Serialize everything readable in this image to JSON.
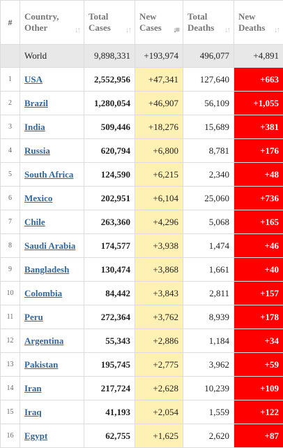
{
  "header": {
    "num": "#",
    "country": "Country, Other",
    "total_cases": "Total Cases",
    "new_cases": "New Cases",
    "total_deaths": "Total Deaths",
    "new_deaths": "New Deaths"
  },
  "world": {
    "country": "World",
    "total_cases": "9,898,331",
    "new_cases": "+193,974",
    "total_deaths": "496,077",
    "new_deaths": "+4,891"
  },
  "rows": [
    {
      "num": "1",
      "country": "USA",
      "total_cases": "2,552,956",
      "new_cases": "+47,341",
      "total_deaths": "127,640",
      "new_deaths": "+663"
    },
    {
      "num": "2",
      "country": "Brazil",
      "total_cases": "1,280,054",
      "new_cases": "+46,907",
      "total_deaths": "56,109",
      "new_deaths": "+1,055"
    },
    {
      "num": "3",
      "country": "India",
      "total_cases": "509,446",
      "new_cases": "+18,276",
      "total_deaths": "15,689",
      "new_deaths": "+381"
    },
    {
      "num": "4",
      "country": "Russia",
      "total_cases": "620,794",
      "new_cases": "+6,800",
      "total_deaths": "8,781",
      "new_deaths": "+176"
    },
    {
      "num": "5",
      "country": "South Africa",
      "total_cases": "124,590",
      "new_cases": "+6,215",
      "total_deaths": "2,340",
      "new_deaths": "+48"
    },
    {
      "num": "6",
      "country": "Mexico",
      "total_cases": "202,951",
      "new_cases": "+6,104",
      "total_deaths": "25,060",
      "new_deaths": "+736"
    },
    {
      "num": "7",
      "country": "Chile",
      "total_cases": "263,360",
      "new_cases": "+4,296",
      "total_deaths": "5,068",
      "new_deaths": "+165"
    },
    {
      "num": "8",
      "country": "Saudi Arabia",
      "total_cases": "174,577",
      "new_cases": "+3,938",
      "total_deaths": "1,474",
      "new_deaths": "+46"
    },
    {
      "num": "9",
      "country": "Bangladesh",
      "total_cases": "130,474",
      "new_cases": "+3,868",
      "total_deaths": "1,661",
      "new_deaths": "+40"
    },
    {
      "num": "10",
      "country": "Colombia",
      "total_cases": "84,442",
      "new_cases": "+3,843",
      "total_deaths": "2,811",
      "new_deaths": "+157"
    },
    {
      "num": "11",
      "country": "Peru",
      "total_cases": "272,364",
      "new_cases": "+3,762",
      "total_deaths": "8,939",
      "new_deaths": "+178"
    },
    {
      "num": "12",
      "country": "Argentina",
      "total_cases": "55,343",
      "new_cases": "+2,886",
      "total_deaths": "1,184",
      "new_deaths": "+34"
    },
    {
      "num": "13",
      "country": "Pakistan",
      "total_cases": "195,745",
      "new_cases": "+2,775",
      "total_deaths": "3,962",
      "new_deaths": "+59"
    },
    {
      "num": "14",
      "country": "Iran",
      "total_cases": "217,724",
      "new_cases": "+2,628",
      "total_deaths": "10,239",
      "new_deaths": "+109"
    },
    {
      "num": "15",
      "country": "Iraq",
      "total_cases": "41,193",
      "new_cases": "+2,054",
      "total_deaths": "1,559",
      "new_deaths": "+122"
    },
    {
      "num": "16",
      "country": "Egypt",
      "total_cases": "62,755",
      "new_cases": "+1,625",
      "total_deaths": "2,620",
      "new_deaths": "+87"
    }
  ],
  "sort_icon": "sort-arrows-icon",
  "colors": {
    "new_cases_bg": "#fff0b3",
    "new_deaths_bg": "#ff0000",
    "link": "#336699",
    "world_bg": "#e8e8e8"
  }
}
